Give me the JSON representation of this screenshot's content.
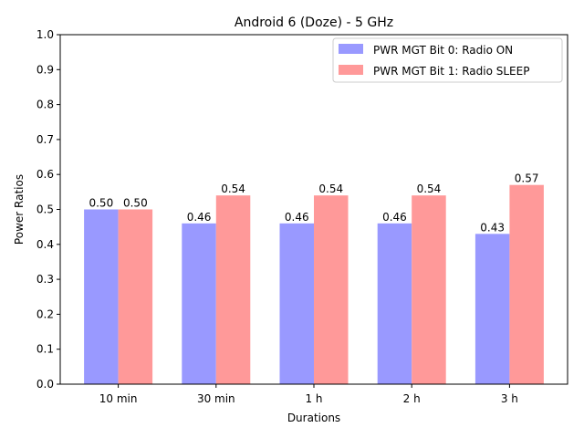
{
  "chart_data": {
    "type": "bar",
    "title": "Android 6 (Doze) - 5 GHz",
    "xlabel": "Durations",
    "ylabel": "Power Ratios",
    "ylim": [
      0,
      1.0
    ],
    "yticks": [
      "0.0",
      "0.1",
      "0.2",
      "0.3",
      "0.4",
      "0.5",
      "0.6",
      "0.7",
      "0.8",
      "0.9",
      "1.0"
    ],
    "categories": [
      "10 min",
      "30 min",
      "1 h",
      "2 h",
      "3 h"
    ],
    "series": [
      {
        "name": "PWR MGT Bit 0: Radio ON",
        "color": "#9999ff",
        "values": [
          0.5,
          0.46,
          0.46,
          0.46,
          0.43
        ],
        "labels": [
          "0.50",
          "0.46",
          "0.46",
          "0.46",
          "0.43"
        ]
      },
      {
        "name": "PWR MGT Bit 1: Radio SLEEP",
        "color": "#ff9999",
        "values": [
          0.5,
          0.54,
          0.54,
          0.54,
          0.57
        ],
        "labels": [
          "0.50",
          "0.54",
          "0.54",
          "0.54",
          "0.57"
        ]
      }
    ],
    "legend_position": "top-right",
    "grid": false
  }
}
